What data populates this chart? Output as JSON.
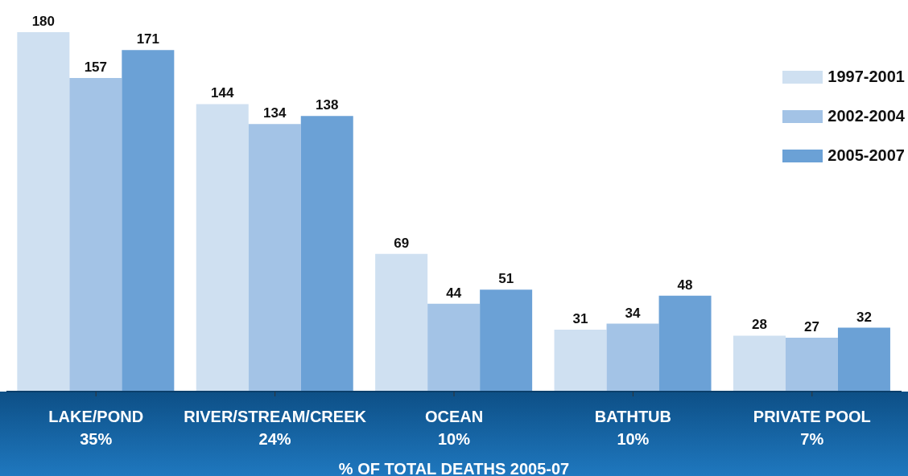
{
  "chart_data": {
    "type": "bar",
    "xlabel": "% OF TOTAL DEATHS 2005-07",
    "categories": [
      "LAKE/POND\n35%",
      "RIVER/STREAM/CREEK\n24%",
      "OCEAN\n10%",
      "BATHTUB\n10%",
      "PRIVATE POOL\n7%"
    ],
    "series": [
      {
        "name": "1997-2001",
        "color": "#cfe0f1",
        "values": [
          180,
          144,
          69,
          31,
          28
        ]
      },
      {
        "name": "2002-2004",
        "color": "#a3c3e6",
        "values": [
          157,
          134,
          44,
          34,
          27
        ]
      },
      {
        "name": "2005-2007",
        "color": "#6ba1d6",
        "values": [
          171,
          138,
          51,
          48,
          32
        ]
      }
    ],
    "data_labels": true,
    "legend": "top right",
    "grid": false
  }
}
